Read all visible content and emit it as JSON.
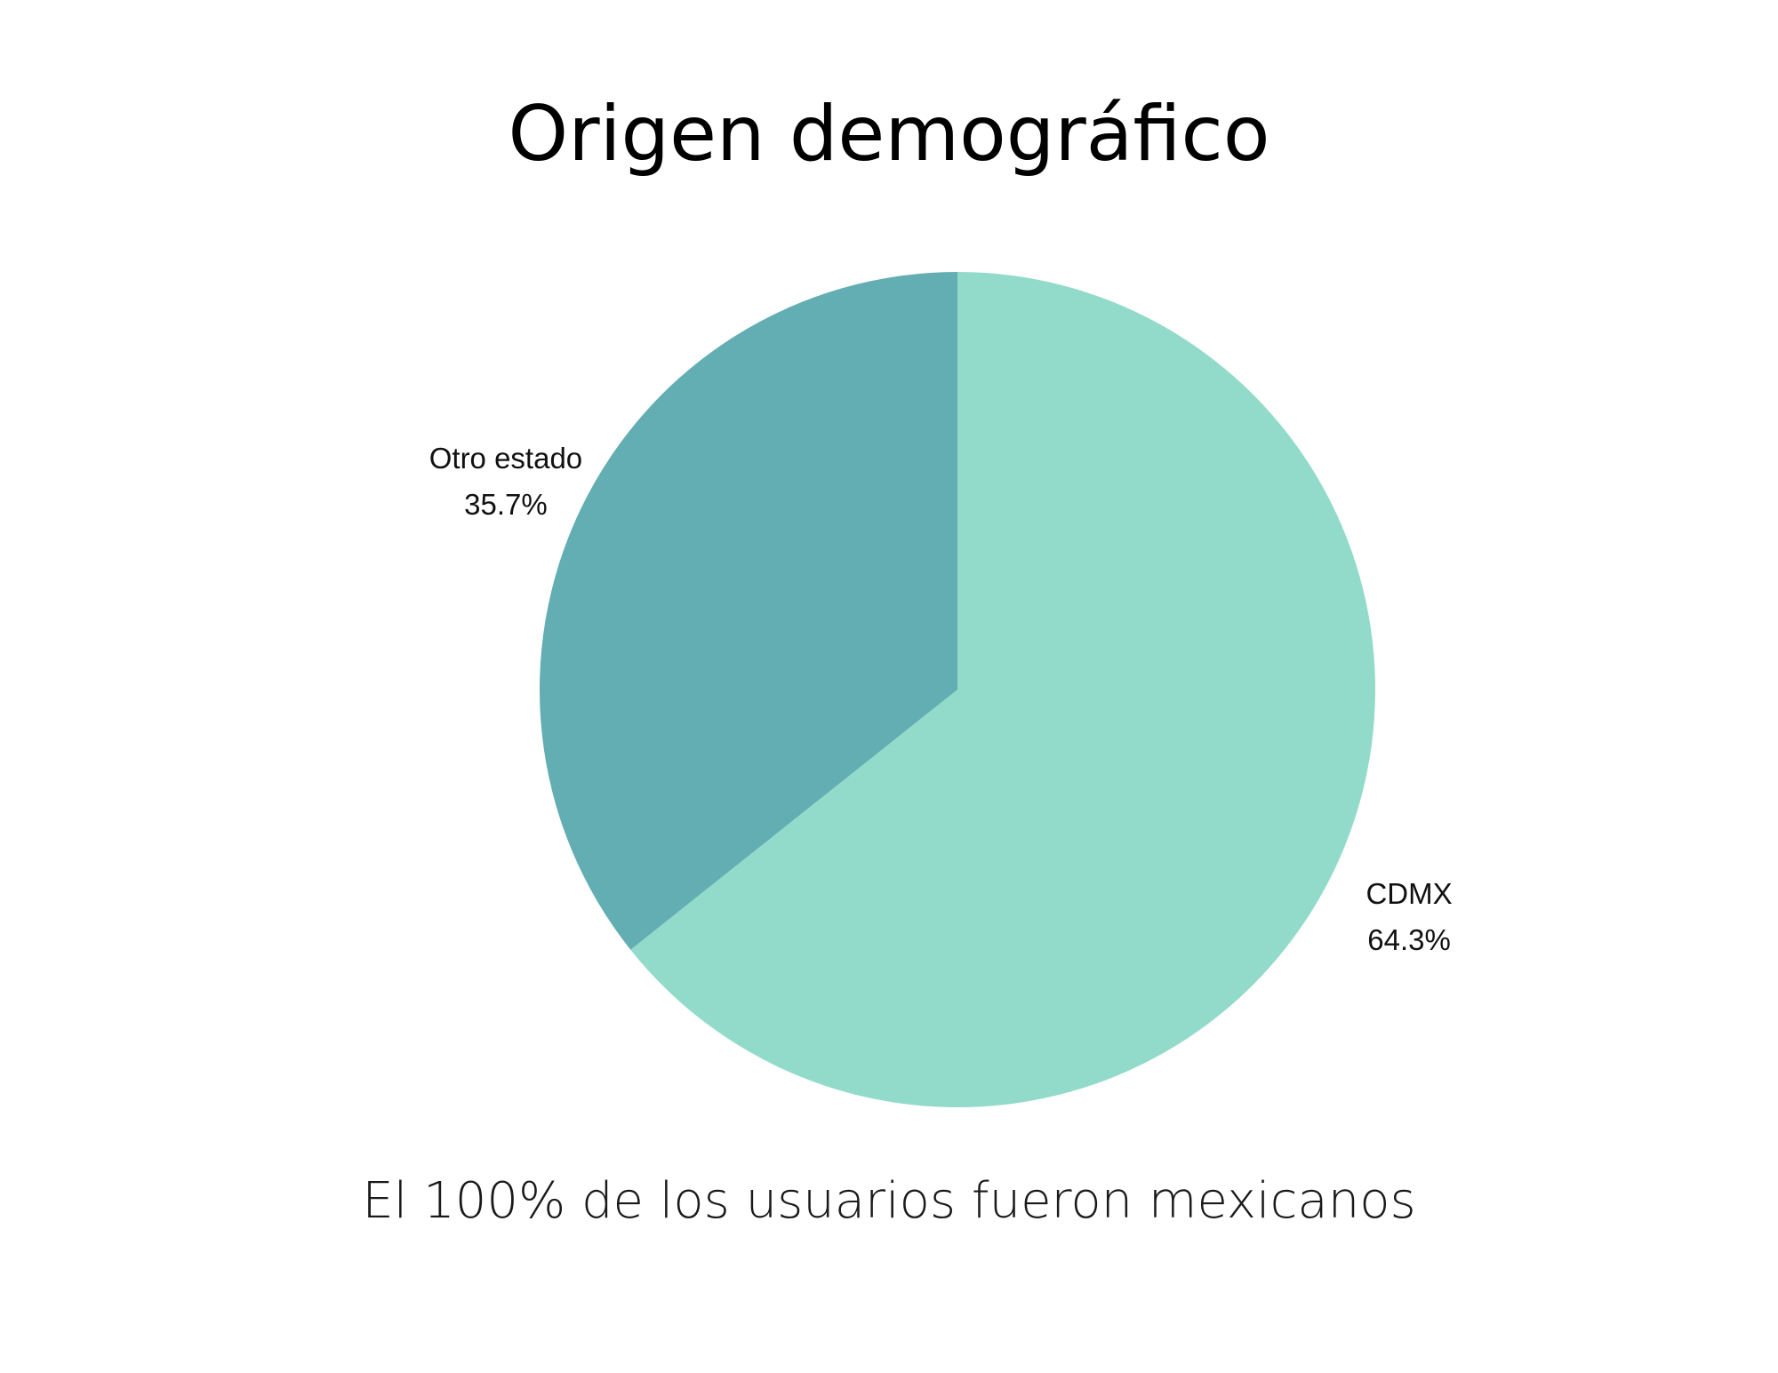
{
  "title": "Origen demográfico",
  "subtitle": "El 100% de los usuarios fueron mexicanos",
  "chart_data": {
    "type": "pie",
    "title": "Origen demográfico",
    "categories": [
      "CDMX",
      "Otro estado"
    ],
    "values": [
      64.3,
      35.7
    ],
    "value_labels": [
      "64.3%",
      "35.7%"
    ],
    "colors": [
      "#92dbca",
      "#62aeb2"
    ],
    "start_angle": "12 o'clock",
    "direction": "clockwise"
  }
}
